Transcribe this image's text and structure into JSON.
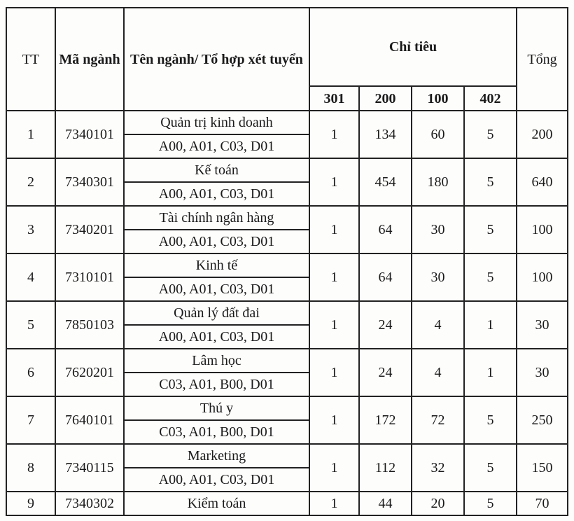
{
  "headers": {
    "tt": "TT",
    "code": "Mã ngành",
    "name": "Tên ngành/ Tổ hợp xét tuyển",
    "quota": "Chỉ tiêu",
    "quota_methods": [
      "301",
      "200",
      "100",
      "402"
    ],
    "total": "Tổng"
  },
  "rows": [
    {
      "tt": "1",
      "code": "7340101",
      "name": "Quản trị kinh doanh",
      "combo": "A00, A01, C03, D01",
      "q301": "1",
      "q200": "134",
      "q100": "60",
      "q402": "5",
      "total": "200"
    },
    {
      "tt": "2",
      "code": "7340301",
      "name": "Kế toán",
      "combo": "A00, A01, C03, D01",
      "q301": "1",
      "q200": "454",
      "q100": "180",
      "q402": "5",
      "total": "640"
    },
    {
      "tt": "3",
      "code": "7340201",
      "name": "Tài chính ngân hàng",
      "combo": "A00, A01, C03, D01",
      "q301": "1",
      "q200": "64",
      "q100": "30",
      "q402": "5",
      "total": "100"
    },
    {
      "tt": "4",
      "code": "7310101",
      "name": "Kinh tế",
      "combo": "A00, A01, C03, D01",
      "q301": "1",
      "q200": "64",
      "q100": "30",
      "q402": "5",
      "total": "100"
    },
    {
      "tt": "5",
      "code": "7850103",
      "name": "Quản lý đất đai",
      "combo": "A00, A01, C03, D01",
      "q301": "1",
      "q200": "24",
      "q100": "4",
      "q402": "1",
      "total": "30"
    },
    {
      "tt": "6",
      "code": "7620201",
      "name": "Lâm học",
      "combo": "C03, A01, B00, D01",
      "q301": "1",
      "q200": "24",
      "q100": "4",
      "q402": "1",
      "total": "30"
    },
    {
      "tt": "7",
      "code": "7640101",
      "name": "Thú y",
      "combo": "C03, A01, B00, D01",
      "q301": "1",
      "q200": "172",
      "q100": "72",
      "q402": "5",
      "total": "250"
    },
    {
      "tt": "8",
      "code": "7340115",
      "name": "Marketing",
      "combo": "A00, A01, C03, D01",
      "q301": "1",
      "q200": "112",
      "q100": "32",
      "q402": "5",
      "total": "150"
    },
    {
      "tt": "9",
      "code": "7340302",
      "name": "Kiểm toán",
      "q301": "1",
      "q200": "44",
      "q100": "20",
      "q402": "5",
      "total": "70"
    }
  ]
}
